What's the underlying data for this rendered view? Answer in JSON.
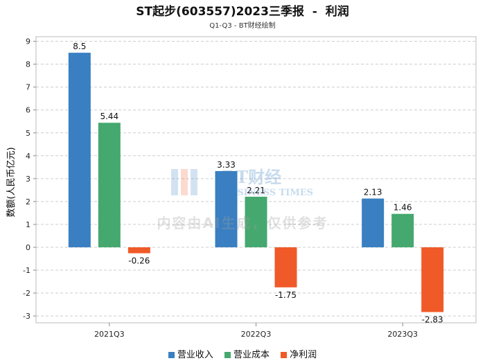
{
  "chart_data": {
    "type": "bar",
    "title": "ST起步(603557)2023三季报  -  利润",
    "subtitle": "Q1-Q3 - BT财经绘制",
    "ylabel": "数额(人民币亿元)",
    "xlabel": "",
    "categories": [
      "2021Q3",
      "2022Q3",
      "2023Q3"
    ],
    "series": [
      {
        "name": "营业收入",
        "color": "#3a7fc1",
        "values": [
          8.5,
          3.33,
          2.13
        ]
      },
      {
        "name": "营业成本",
        "color": "#45a86e",
        "values": [
          5.44,
          2.21,
          1.46
        ]
      },
      {
        "name": "净利润",
        "color": "#f05a28",
        "values": [
          -0.26,
          -1.75,
          -2.83
        ]
      }
    ],
    "data_labels": [
      [
        "8.5",
        "3.33",
        "2.13"
      ],
      [
        "5.44",
        "2.21",
        "1.46"
      ],
      [
        "-0.26",
        "-1.75",
        "-2.83"
      ]
    ],
    "ylim": [
      -3.3,
      9.2
    ],
    "yticks": [
      -3,
      -2,
      -1,
      0,
      1,
      2,
      3,
      4,
      5,
      6,
      7,
      8,
      9
    ],
    "grid": true,
    "legend_position": "bottom"
  },
  "watermark": {
    "logo_text": "BT财经",
    "logo_sub": "BUSINESS TIMES",
    "notice": "内容由AI生成，仅供参考"
  }
}
